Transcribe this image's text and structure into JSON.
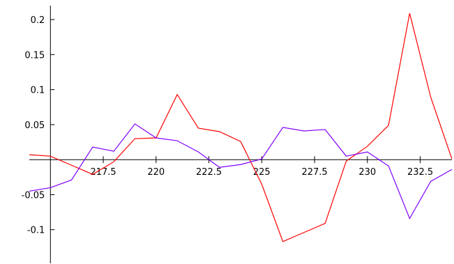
{
  "chart_data": {
    "type": "line",
    "x": [
      214,
      215,
      216,
      217,
      218,
      219,
      220,
      221,
      222,
      223,
      224,
      225,
      226,
      227,
      228,
      229,
      230,
      231,
      232,
      233,
      234
    ],
    "series": [
      {
        "color": "#ff0000",
        "values": [
          0.007,
          0.005,
          -0.008,
          -0.021,
          -0.003,
          0.03,
          0.031,
          0.093,
          0.045,
          0.04,
          0.026,
          -0.035,
          -0.117,
          -0.104,
          -0.091,
          -0.002,
          0.019,
          0.049,
          0.209,
          0.089,
          0.001
        ]
      },
      {
        "color": "#8000ff",
        "values": [
          -0.045,
          -0.04,
          -0.029,
          0.018,
          0.012,
          0.051,
          0.031,
          0.027,
          0.011,
          -0.011,
          -0.007,
          0.001,
          0.046,
          0.041,
          0.043,
          0.005,
          0.011,
          -0.009,
          -0.084,
          -0.031,
          -0.014
        ]
      }
    ],
    "xlim": [
      214,
      234
    ],
    "ylim": [
      -0.148,
      0.22
    ],
    "xticks": [
      217.5,
      220,
      222.5,
      225,
      227.5,
      230,
      232.5
    ],
    "yticks": [
      -0.1,
      -0.05,
      0.05,
      0.1,
      0.15,
      0.2
    ],
    "axes_origin": [
      215,
      0
    ]
  }
}
